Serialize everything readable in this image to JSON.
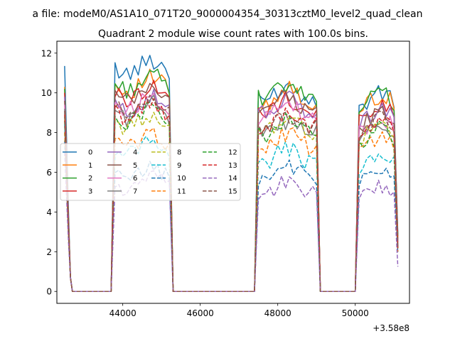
{
  "figure": {
    "suptitle": "a file: modeM0/AS1A10_071T20_9000004354_30313cztM0_level2_quad_clean",
    "title": "Quadrant 2 module wise count rates with 100.0s bins.",
    "offset_text": "+3.58e8"
  },
  "colors": [
    "#1f77b4",
    "#ff7f0e",
    "#2ca02c",
    "#d62728",
    "#9467bd",
    "#8c564b",
    "#e377c2",
    "#7f7f7f",
    "#bcbd22",
    "#17becf",
    "#1f77b4",
    "#ff7f0e",
    "#2ca02c",
    "#d62728",
    "#9467bd",
    "#8c564b"
  ],
  "chart_data": {
    "type": "line",
    "title": "Quadrant 2 module wise count rates with 100.0s bins.",
    "xlabel": "",
    "ylabel": "",
    "x_offset": 358000000,
    "xlim": [
      42300,
      51400
    ],
    "ylim": [
      -0.6,
      12.6
    ],
    "xticks": [
      44000,
      46000,
      48000,
      50000
    ],
    "xtick_labels": [
      "44000",
      "46000",
      "48000",
      "50000"
    ],
    "yticks": [
      0,
      2,
      4,
      6,
      8,
      10,
      12
    ],
    "ytick_labels": [
      "0",
      "2",
      "4",
      "6",
      "8",
      "10",
      "12"
    ],
    "grid": false,
    "legend_position": "center-left",
    "legend_columns": 4,
    "segments": [
      {
        "start": 43800,
        "end": 45200,
        "count": 15
      },
      {
        "start": 47500,
        "end": 49000,
        "count": 16
      },
      {
        "start": 50100,
        "end": 51100,
        "count": 11
      }
    ],
    "series": [
      {
        "name": "0",
        "dashed": false,
        "first": 11.35,
        "levels": [
          11.3,
          10.0,
          9.6
        ],
        "last": 2.9
      },
      {
        "name": "1",
        "dashed": false,
        "first": 10.3,
        "levels": [
          10.4,
          9.8,
          9.5
        ],
        "last": 2.7
      },
      {
        "name": "2",
        "dashed": false,
        "first": 10.2,
        "levels": [
          10.5,
          10.0,
          9.6
        ],
        "last": 2.8
      },
      {
        "name": "3",
        "dashed": false,
        "first": 10.0,
        "levels": [
          10.0,
          9.3,
          9.0
        ],
        "last": 2.6
      },
      {
        "name": "4",
        "dashed": false,
        "first": 9.8,
        "levels": [
          9.4,
          9.3,
          8.8
        ],
        "last": 2.5
      },
      {
        "name": "5",
        "dashed": false,
        "first": 9.6,
        "levels": [
          9.9,
          9.4,
          8.6
        ],
        "last": 2.4
      },
      {
        "name": "6",
        "dashed": false,
        "first": 9.4,
        "levels": [
          9.5,
          9.0,
          8.4
        ],
        "last": 2.3
      },
      {
        "name": "7",
        "dashed": false,
        "first": 9.2,
        "levels": [
          9.1,
          8.2,
          8.0
        ],
        "last": 2.2
      },
      {
        "name": "8",
        "dashed": true,
        "first": 8.8,
        "levels": [
          8.6,
          8.4,
          7.9
        ],
        "last": 2.2
      },
      {
        "name": "9",
        "dashed": true,
        "first": 8.4,
        "levels": [
          7.3,
          6.8,
          6.5
        ],
        "last": 2.0
      },
      {
        "name": "10",
        "dashed": true,
        "first": 7.6,
        "levels": [
          5.9,
          6.0,
          5.7
        ],
        "last": 1.9
      },
      {
        "name": "11",
        "dashed": true,
        "first": 8.0,
        "levels": [
          7.6,
          7.6,
          7.4
        ],
        "last": 2.0
      },
      {
        "name": "12",
        "dashed": true,
        "first": 8.6,
        "levels": [
          8.9,
          8.2,
          7.8
        ],
        "last": 2.1
      },
      {
        "name": "13",
        "dashed": true,
        "first": 8.9,
        "levels": [
          9.1,
          8.6,
          8.1
        ],
        "last": 2.1
      },
      {
        "name": "14",
        "dashed": true,
        "first": 7.0,
        "levels": [
          5.4,
          5.2,
          5.0
        ],
        "last": 1.25
      },
      {
        "name": "15",
        "dashed": true,
        "first": 9.1,
        "levels": [
          9.3,
          8.5,
          8.3
        ],
        "last": 2.2
      }
    ]
  }
}
